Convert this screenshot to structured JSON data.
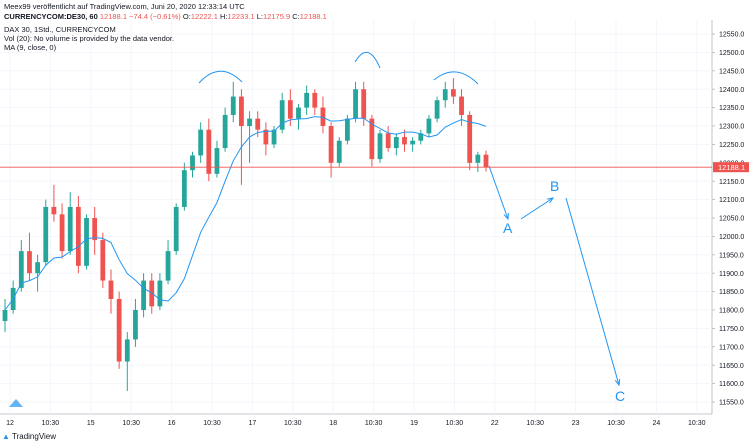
{
  "header": {
    "published": "Meex99 veröffentlicht auf TradingView.com, Juni 20, 2020 12:33:14 UTC",
    "symbol": "CURRENCYCOM:DE30, 60",
    "last": "12188.1",
    "change": "−74.4 (−0.61%)",
    "o_label": "O:",
    "o_val": "12222.1",
    "h_label": "H:",
    "h_val": "12233.1",
    "l_label": "L:",
    "l_val": "12175.9",
    "c_label": "C:",
    "c_val": "12188.1"
  },
  "legend": {
    "line1": "DAX 30, 1Std., CURRENCYCOM",
    "line2": "Vol (20): No volume is provided by the data vendor.",
    "line3": "MA (9, close, 0)"
  },
  "footer": {
    "brand": "TradingView"
  },
  "colors": {
    "up": "#26a69a",
    "down": "#ef5350",
    "ma": "#2196f3",
    "annot": "#2196f3",
    "price_line": "#ef5350"
  },
  "chart_data": {
    "type": "candlestick",
    "ylim": [
      11500,
      12580
    ],
    "y_ticks": [
      "12550.0",
      "12500.0",
      "12450.0",
      "12400.0",
      "12350.0",
      "12300.0",
      "12250.0",
      "12200.0",
      "12150.0",
      "12100.0",
      "12050.0",
      "12000.0",
      "11950.0",
      "11900.0",
      "11850.0",
      "11800.0",
      "11750.0",
      "11700.0",
      "11650.0",
      "11600.0",
      "11550.0"
    ],
    "x_ticks": [
      "12",
      "10:30",
      "15",
      "10:30",
      "16",
      "10:30",
      "17",
      "10:30",
      "18",
      "10:30",
      "19",
      "10:30",
      "22",
      "10:30",
      "23",
      "10:30",
      "24",
      "10:30"
    ],
    "price_label": "12188.1",
    "annotations": [
      "A",
      "B",
      "C"
    ],
    "candles": [
      {
        "o": 11770,
        "h": 11830,
        "l": 11740,
        "c": 11800
      },
      {
        "o": 11800,
        "h": 11880,
        "l": 11790,
        "c": 11860
      },
      {
        "o": 11860,
        "h": 11990,
        "l": 11850,
        "c": 11960
      },
      {
        "o": 11960,
        "h": 12010,
        "l": 11880,
        "c": 11900
      },
      {
        "o": 11900,
        "h": 11950,
        "l": 11850,
        "c": 11930
      },
      {
        "o": 11930,
        "h": 12100,
        "l": 11920,
        "c": 12080
      },
      {
        "o": 12080,
        "h": 12140,
        "l": 12040,
        "c": 12060
      },
      {
        "o": 12060,
        "h": 12090,
        "l": 11940,
        "c": 11960
      },
      {
        "o": 11960,
        "h": 12120,
        "l": 11950,
        "c": 12080
      },
      {
        "o": 12080,
        "h": 12110,
        "l": 11900,
        "c": 11920
      },
      {
        "o": 11920,
        "h": 12060,
        "l": 11910,
        "c": 12050
      },
      {
        "o": 12050,
        "h": 12080,
        "l": 11950,
        "c": 11990
      },
      {
        "o": 11990,
        "h": 12010,
        "l": 11860,
        "c": 11880
      },
      {
        "o": 11880,
        "h": 11910,
        "l": 11790,
        "c": 11830
      },
      {
        "o": 11830,
        "h": 11850,
        "l": 11640,
        "c": 11660
      },
      {
        "o": 11660,
        "h": 11740,
        "l": 11580,
        "c": 11720
      },
      {
        "o": 11720,
        "h": 11830,
        "l": 11700,
        "c": 11800
      },
      {
        "o": 11800,
        "h": 11900,
        "l": 11780,
        "c": 11880
      },
      {
        "o": 11880,
        "h": 11900,
        "l": 11790,
        "c": 11810
      },
      {
        "o": 11810,
        "h": 11900,
        "l": 11800,
        "c": 11880
      },
      {
        "o": 11880,
        "h": 11990,
        "l": 11870,
        "c": 11960
      },
      {
        "o": 11960,
        "h": 12090,
        "l": 11950,
        "c": 12080
      },
      {
        "o": 12080,
        "h": 12200,
        "l": 12070,
        "c": 12180
      },
      {
        "o": 12180,
        "h": 12230,
        "l": 12160,
        "c": 12220
      },
      {
        "o": 12220,
        "h": 12310,
        "l": 12200,
        "c": 12290
      },
      {
        "o": 12290,
        "h": 12320,
        "l": 12150,
        "c": 12170
      },
      {
        "o": 12170,
        "h": 12260,
        "l": 12160,
        "c": 12240
      },
      {
        "o": 12240,
        "h": 12350,
        "l": 12230,
        "c": 12330
      },
      {
        "o": 12330,
        "h": 12420,
        "l": 12310,
        "c": 12380
      },
      {
        "o": 12380,
        "h": 12400,
        "l": 12140,
        "c": 12300
      },
      {
        "o": 12300,
        "h": 12340,
        "l": 12200,
        "c": 12320
      },
      {
        "o": 12320,
        "h": 12340,
        "l": 12270,
        "c": 12290
      },
      {
        "o": 12290,
        "h": 12310,
        "l": 12220,
        "c": 12250
      },
      {
        "o": 12250,
        "h": 12300,
        "l": 12240,
        "c": 12290
      },
      {
        "o": 12290,
        "h": 12390,
        "l": 12280,
        "c": 12370
      },
      {
        "o": 12370,
        "h": 12400,
        "l": 12300,
        "c": 12320
      },
      {
        "o": 12320,
        "h": 12360,
        "l": 12290,
        "c": 12350
      },
      {
        "o": 12350,
        "h": 12410,
        "l": 12330,
        "c": 12390
      },
      {
        "o": 12390,
        "h": 12400,
        "l": 12330,
        "c": 12350
      },
      {
        "o": 12350,
        "h": 12380,
        "l": 12280,
        "c": 12300
      },
      {
        "o": 12300,
        "h": 12310,
        "l": 12160,
        "c": 12200
      },
      {
        "o": 12200,
        "h": 12270,
        "l": 12190,
        "c": 12260
      },
      {
        "o": 12260,
        "h": 12330,
        "l": 12250,
        "c": 12320
      },
      {
        "o": 12320,
        "h": 12420,
        "l": 12310,
        "c": 12400
      },
      {
        "o": 12400,
        "h": 12420,
        "l": 12300,
        "c": 12320
      },
      {
        "o": 12320,
        "h": 12330,
        "l": 12190,
        "c": 12210
      },
      {
        "o": 12210,
        "h": 12290,
        "l": 12200,
        "c": 12280
      },
      {
        "o": 12280,
        "h": 12300,
        "l": 12230,
        "c": 12240
      },
      {
        "o": 12240,
        "h": 12280,
        "l": 12220,
        "c": 12270
      },
      {
        "o": 12270,
        "h": 12290,
        "l": 12230,
        "c": 12250
      },
      {
        "o": 12250,
        "h": 12270,
        "l": 12230,
        "c": 12260
      },
      {
        "o": 12260,
        "h": 12290,
        "l": 12250,
        "c": 12280
      },
      {
        "o": 12280,
        "h": 12330,
        "l": 12270,
        "c": 12320
      },
      {
        "o": 12320,
        "h": 12380,
        "l": 12310,
        "c": 12370
      },
      {
        "o": 12370,
        "h": 12420,
        "l": 12350,
        "c": 12400
      },
      {
        "o": 12400,
        "h": 12430,
        "l": 12360,
        "c": 12380
      },
      {
        "o": 12380,
        "h": 12400,
        "l": 12300,
        "c": 12330
      },
      {
        "o": 12330,
        "h": 12340,
        "l": 12180,
        "c": 12200
      },
      {
        "o": 12200,
        "h": 12230,
        "l": 12175,
        "c": 12222
      },
      {
        "o": 12222,
        "h": 12233,
        "l": 12176,
        "c": 12188
      }
    ]
  }
}
